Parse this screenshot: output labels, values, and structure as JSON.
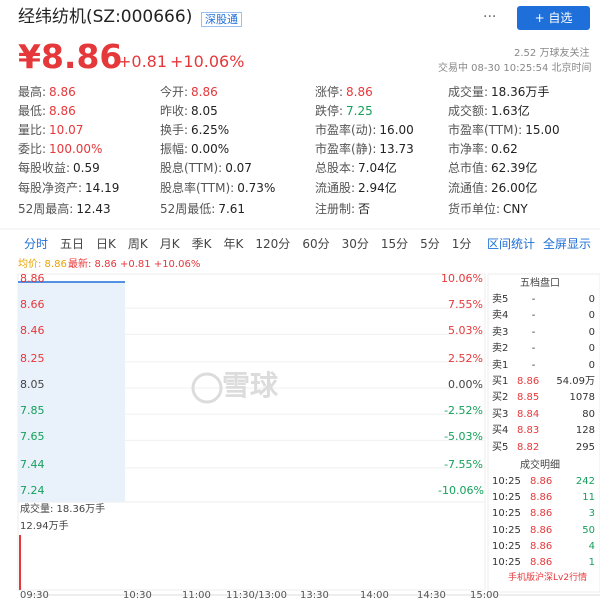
{
  "header": {
    "name": "经纬纺机(SZ:000666)",
    "badge": "深股通",
    "more": "···",
    "follow_button": "+ 自选"
  },
  "quote": {
    "price": "¥8.86",
    "change": "+0.81",
    "change_pct": "+10.06%",
    "followers": "2.52 万球友关注",
    "status": "交易中 08-30 10:25:54 北京时间"
  },
  "stats": [
    [
      {
        "label": "最高:",
        "value": "8.86"
      },
      {
        "label": "今开:",
        "value": "8.86"
      },
      {
        "label": "涨停:",
        "value": "8.86"
      },
      {
        "label": "成交量:",
        "value": "18.36万手"
      }
    ],
    [
      {
        "label": "最低:",
        "value": "8.86"
      },
      {
        "label": "昨收:",
        "value": "8.05"
      },
      {
        "label": "跌停:",
        "value": "7.25"
      },
      {
        "label": "成交额:",
        "value": "1.63亿"
      }
    ],
    [
      {
        "label": "量比:",
        "value": "10.07"
      },
      {
        "label": "换手:",
        "value": "6.25%"
      },
      {
        "label": "市盈率(动):",
        "value": "16.00"
      },
      {
        "label": "市盈率(TTM):",
        "value": "15.00"
      }
    ],
    [
      {
        "label": "委比:",
        "value": "100.00%"
      },
      {
        "label": "振幅:",
        "value": "0.00%"
      },
      {
        "label": "市盈率(静):",
        "value": "13.73"
      },
      {
        "label": "市净率:",
        "value": "0.62"
      }
    ],
    [
      {
        "label": "每股收益:",
        "value": "0.59"
      },
      {
        "label": "股息(TTM):",
        "value": "0.07"
      },
      {
        "label": "总股本:",
        "value": "7.04亿"
      },
      {
        "label": "总市值:",
        "value": "62.39亿"
      }
    ],
    [
      {
        "label": "每股净资产:",
        "value": "14.19"
      },
      {
        "label": "股息率(TTM):",
        "value": "0.73%"
      },
      {
        "label": "流通股:",
        "value": "2.94亿"
      },
      {
        "label": "流通值:",
        "value": "26.00亿"
      }
    ],
    [
      {
        "label": "52周最高:",
        "value": "12.43"
      },
      {
        "label": "52周最低:",
        "value": "7.61"
      },
      {
        "label": "注册制:",
        "value": "否"
      },
      {
        "label": "货币单位:",
        "value": "CNY"
      }
    ]
  ],
  "tabs": [
    "分时",
    "五日",
    "日K",
    "周K",
    "月K",
    "季K",
    "年K",
    "120分",
    "60分",
    "30分",
    "15分",
    "5分",
    "1分"
  ],
  "tools": [
    "区间统计",
    "全屏显示"
  ],
  "chart": {
    "legend": {
      "avg": "均价: 8.86",
      "latest": "最新: 8.86 +0.81 +10.06%"
    },
    "price_ticks": [
      8.86,
      8.66,
      8.46,
      8.25,
      8.05,
      7.85,
      7.65,
      7.44,
      7.24
    ],
    "pct_ticks": [
      "10.06%",
      "7.55%",
      "5.03%",
      "2.52%",
      "0.00%",
      "-2.52%",
      "-5.03%",
      "-7.55%",
      "-10.06%"
    ],
    "watermark": "雪球",
    "volume_label": "成交量: 18.36万手",
    "volume_max": "12.94万手",
    "times": [
      "09:30",
      "10:30",
      "11:00",
      "11:30/13:00",
      "13:30",
      "14:00",
      "14:30",
      "15:00"
    ]
  },
  "order_book": {
    "title": "五档盘口",
    "rows": [
      [
        "卖5",
        "-",
        "0"
      ],
      [
        "卖4",
        "-",
        "0"
      ],
      [
        "卖3",
        "-",
        "0"
      ],
      [
        "卖2",
        "-",
        "0"
      ],
      [
        "卖1",
        "-",
        "0"
      ],
      [
        "买1",
        "8.86",
        "54.09万"
      ],
      [
        "买2",
        "8.85",
        "1078"
      ],
      [
        "买3",
        "8.84",
        "80"
      ],
      [
        "买4",
        "8.83",
        "128"
      ],
      [
        "买5",
        "8.82",
        "295"
      ]
    ]
  },
  "trades": {
    "title": "成交明细",
    "rows": [
      [
        "10:25",
        "8.86",
        "242"
      ],
      [
        "10:25",
        "8.86",
        "11"
      ],
      [
        "10:25",
        "8.86",
        "3"
      ],
      [
        "10:25",
        "8.86",
        "50"
      ],
      [
        "10:25",
        "8.86",
        "4"
      ],
      [
        "10:25",
        "8.86",
        "1"
      ]
    ]
  },
  "footer_link": "手机版沪深Lv2行情"
}
